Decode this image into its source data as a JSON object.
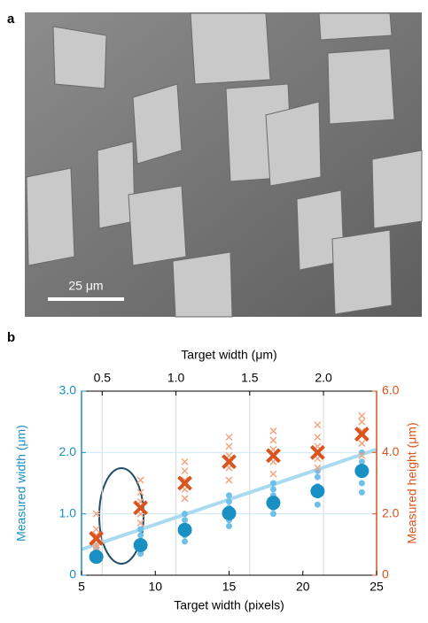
{
  "panel_a": {
    "label": "a",
    "scale_bar": "25 μm"
  },
  "chart_data": {
    "type": "scatter",
    "panel_label": "b",
    "x_label": "Target width (pixels)",
    "x2_label": "Target width (μm)",
    "y_label": "Measured width (μm)",
    "y2_label": "Measured height (μm)",
    "xlim": [
      5,
      25
    ],
    "xticks": [
      5,
      10,
      15,
      20,
      25
    ],
    "x2lim": [
      0.36,
      2.36
    ],
    "x2ticks": [
      0.5,
      {
        "value": 1,
        "label": "1.0"
      },
      1.5,
      {
        "value": 2,
        "label": "2.0"
      }
    ],
    "ylim": [
      0,
      3
    ],
    "yticks": [
      0,
      {
        "value": 1,
        "label": "1.0"
      },
      {
        "value": 2,
        "label": "2.0"
      },
      {
        "value": 3,
        "label": "3.0"
      }
    ],
    "y2lim": [
      0,
      6
    ],
    "y2ticks": [
      0,
      {
        "value": 2,
        "label": "2.0"
      },
      {
        "value": 4,
        "label": "4.0"
      },
      {
        "value": 6,
        "label": "6.0"
      }
    ],
    "grid": true,
    "y_color": "#1a8fc4",
    "y2_color": "#d9541e",
    "series": [
      {
        "marker": "line",
        "color": "#a9daf0",
        "axis": "y",
        "x": [
          5,
          25
        ],
        "values": [
          0.42,
          2.05
        ]
      },
      {
        "marker": "small-circle",
        "color": "#6fc0e8",
        "axis": "y",
        "x": [
          6,
          6,
          6,
          6,
          6,
          9,
          9,
          9,
          9,
          9,
          12,
          12,
          12,
          12,
          12,
          15,
          15,
          15,
          15,
          15,
          18,
          18,
          18,
          18,
          18,
          21,
          21,
          21,
          21,
          21,
          24,
          24,
          24,
          24,
          24
        ],
        "values": [
          0.25,
          0.3,
          0.35,
          0.4,
          0.45,
          0.35,
          0.45,
          0.55,
          0.65,
          0.75,
          0.55,
          0.65,
          0.8,
          0.9,
          1.0,
          0.8,
          0.9,
          1.1,
          1.2,
          1.3,
          1.0,
          1.1,
          1.3,
          1.4,
          1.5,
          1.15,
          1.3,
          1.45,
          1.6,
          1.7,
          1.35,
          1.5,
          1.7,
          1.85,
          2.0
        ]
      },
      {
        "marker": "small-x",
        "color": "#f4a582",
        "axis": "y2",
        "x": [
          6,
          6,
          6,
          6,
          6,
          9,
          9,
          9,
          9,
          9,
          12,
          12,
          12,
          12,
          12,
          15,
          15,
          15,
          15,
          15,
          18,
          18,
          18,
          18,
          18,
          21,
          21,
          21,
          21,
          21,
          24,
          24,
          24,
          24,
          24
        ],
        "values": [
          0.9,
          1.0,
          1.3,
          1.5,
          2.0,
          1.7,
          2.0,
          2.4,
          2.7,
          3.1,
          2.5,
          2.8,
          3.1,
          3.4,
          3.7,
          3.1,
          3.5,
          3.9,
          4.2,
          4.5,
          3.3,
          3.7,
          4.1,
          4.4,
          4.7,
          3.5,
          3.8,
          4.2,
          4.5,
          4.9,
          3.9,
          4.3,
          4.7,
          5.0,
          5.2
        ]
      },
      {
        "marker": "circle",
        "color": "#1a8fc4",
        "axis": "y",
        "x": [
          6,
          9,
          12,
          15,
          18,
          21,
          24
        ],
        "values": [
          0.3,
          0.49,
          0.74,
          1.01,
          1.18,
          1.37,
          1.7
        ]
      },
      {
        "marker": "x",
        "color": "#d9541e",
        "axis": "y2",
        "x": [
          6,
          9,
          12,
          15,
          18,
          21,
          24
        ],
        "values": [
          1.2,
          2.2,
          3.0,
          3.7,
          3.9,
          4.0,
          4.6
        ]
      }
    ]
  }
}
